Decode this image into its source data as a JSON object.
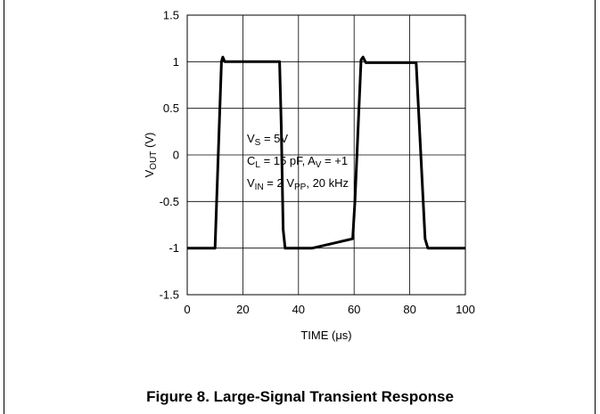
{
  "caption": "Figure 8. Large-Signal Transient Response",
  "chart_data": {
    "type": "line",
    "title": "",
    "xlabel": "TIME (μs)",
    "ylabel": "VOUT (V)",
    "xlim": [
      0,
      100
    ],
    "ylim": [
      -1.5,
      1.5
    ],
    "x_ticks": [
      0,
      20,
      40,
      60,
      80,
      100
    ],
    "x_tick_labels": [
      "0",
      "20",
      "40",
      "60",
      "80",
      "100"
    ],
    "y_ticks": [
      -1.5,
      -1,
      -0.5,
      0,
      0.5,
      1,
      1.5
    ],
    "y_tick_labels": [
      "-1.5",
      "-1",
      "-0.5",
      "0",
      "0.5",
      "1",
      "1.5"
    ],
    "grid": true,
    "series": [
      {
        "x": [
          0,
          10,
          12.3,
          12.8,
          13.5,
          33.2,
          33.8,
          34.5,
          35.2,
          45,
          59.5,
          60.3,
          62.5,
          63.2,
          64.2,
          82.3,
          85.5,
          86.5,
          100
        ],
        "y": [
          -1,
          -1,
          1.0,
          1.05,
          1.0,
          1.0,
          0.3,
          -0.8,
          -1.0,
          -1.0,
          -0.9,
          -0.5,
          1.02,
          1.05,
          0.99,
          0.99,
          -0.9,
          -1.0,
          -1.0
        ]
      }
    ],
    "annotations": [
      {
        "main": "V",
        "sub": "S",
        "rest": " = 5V"
      },
      {
        "main": "C",
        "sub": "L",
        "rest": " = 15 pF, A",
        "sub2": "V",
        "rest2": " = +1"
      },
      {
        "main": "V",
        "sub": "IN",
        "rest": " = 2 V",
        "sub2": "PP",
        "rest2": ", 20 kHz"
      }
    ]
  }
}
